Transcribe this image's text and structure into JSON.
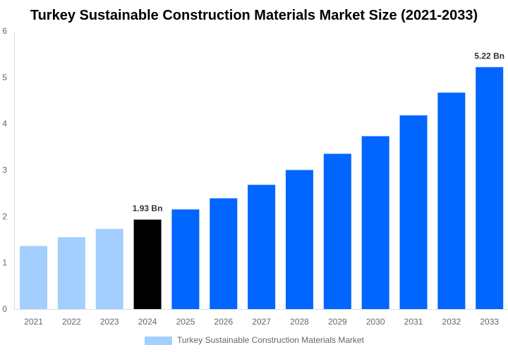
{
  "chart_data": {
    "type": "bar",
    "title": "Turkey Sustainable Construction Materials Market Size (2021-2033)",
    "categories": [
      "2021",
      "2022",
      "2023",
      "2024",
      "2025",
      "2026",
      "2027",
      "2028",
      "2029",
      "2030",
      "2031",
      "2032",
      "2033"
    ],
    "series": [
      {
        "name": "Turkey Sustainable Construction Materials Market",
        "values": [
          1.36,
          1.55,
          1.73,
          1.93,
          2.15,
          2.39,
          2.68,
          3.0,
          3.35,
          3.73,
          4.18,
          4.67,
          5.22
        ]
      }
    ],
    "data_labels": {
      "3": "1.93 Bn",
      "12": "5.22 Bn"
    },
    "ylim": [
      0,
      6
    ],
    "yticks": [
      0,
      1,
      2,
      3,
      4,
      5,
      6
    ],
    "xlabel": "",
    "ylabel": "",
    "grid": false,
    "legend_position": "bottom",
    "colors": {
      "historical": "#a3cfff",
      "current": "#000000",
      "forecast": "#0066ff"
    }
  }
}
